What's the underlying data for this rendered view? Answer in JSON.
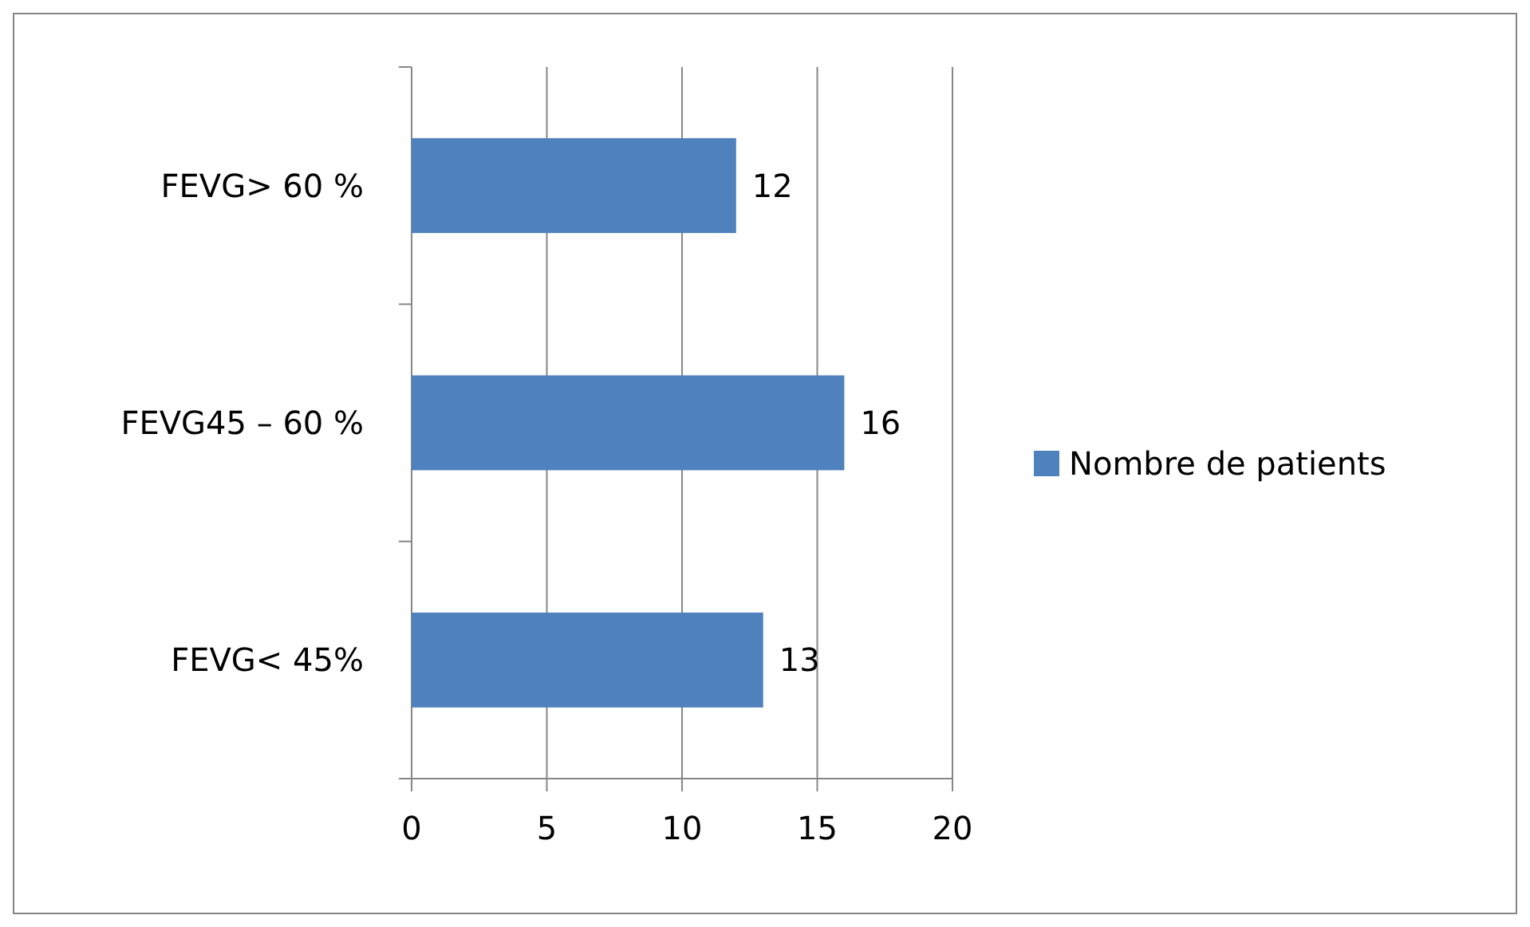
{
  "chart_data": {
    "type": "bar",
    "orientation": "horizontal",
    "categories": [
      "FEVG> 60 %",
      "FEVG45 – 60 %",
      "FEVG< 45%"
    ],
    "series": [
      {
        "name": "Nombre de patients",
        "color": "#4f81bd",
        "values": [
          12,
          16,
          13
        ]
      }
    ],
    "xlim": [
      0,
      20
    ],
    "xticks": [
      0,
      5,
      10,
      15,
      20
    ],
    "grid": "x",
    "legend": "right",
    "data_labels": true
  }
}
